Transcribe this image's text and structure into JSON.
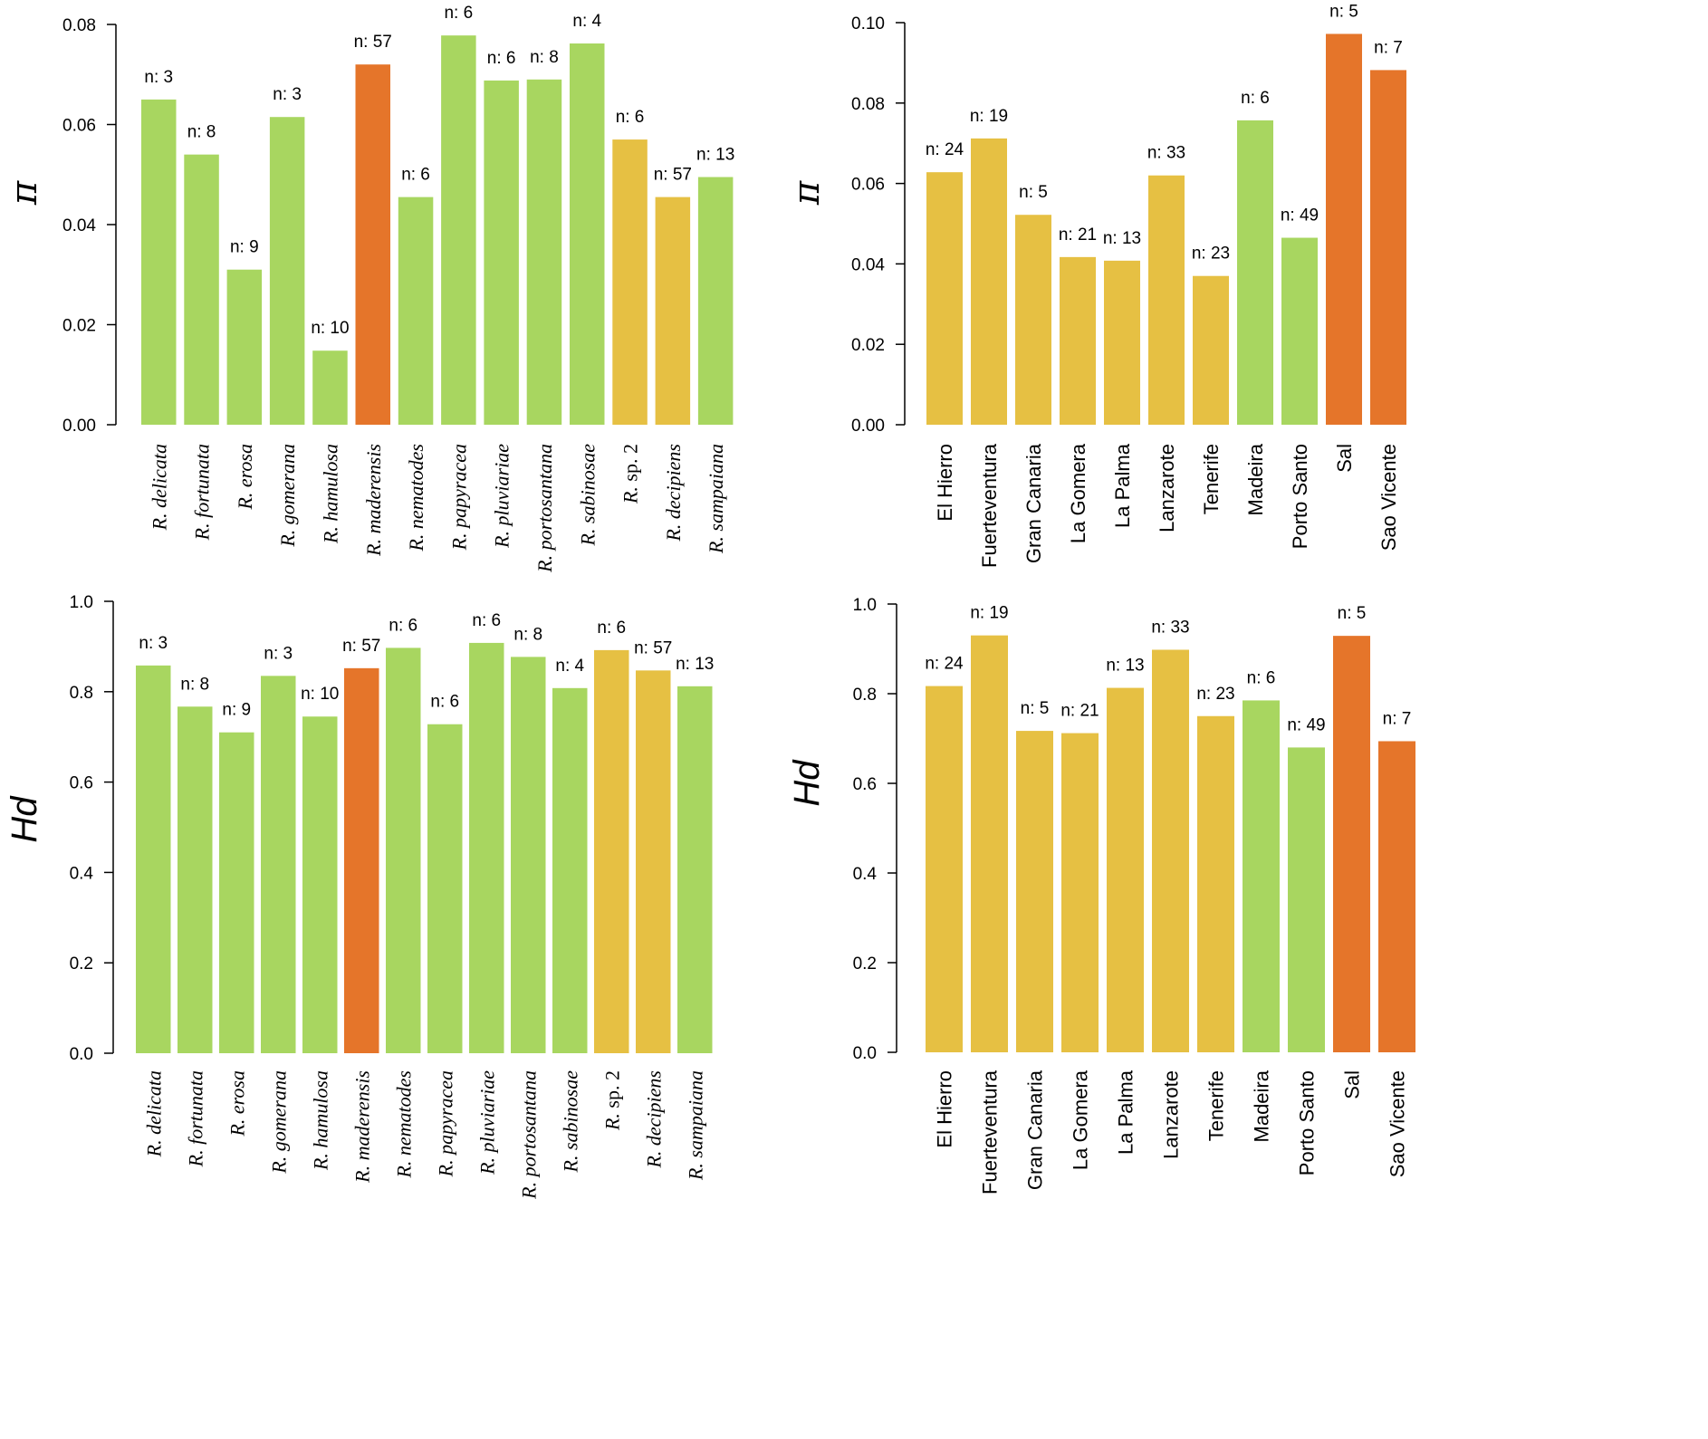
{
  "colors": {
    "green": "#a8d660",
    "yellow": "#e6c043",
    "orange": "#e5752a",
    "axis": "#000000"
  },
  "chart_data": [
    {
      "type": "bar",
      "ylabel": "π",
      "ylim": [
        0,
        0.08
      ],
      "yticks": [
        "0.00",
        "0.02",
        "0.04",
        "0.06",
        "0.08"
      ],
      "label_style": "species",
      "categories": [
        {
          "prefix": "R.",
          "name": "delicata"
        },
        {
          "prefix": "R.",
          "name": "fortunata"
        },
        {
          "prefix": "R.",
          "name": "erosa"
        },
        {
          "prefix": "R.",
          "name": "gomerana"
        },
        {
          "prefix": "R.",
          "name": "hamulosa"
        },
        {
          "prefix": "R.",
          "name": "maderensis"
        },
        {
          "prefix": "R.",
          "name": "nematodes"
        },
        {
          "prefix": "R.",
          "name": "papyracea"
        },
        {
          "prefix": "R.",
          "name": "pluviariae"
        },
        {
          "prefix": "R.",
          "name": "portosantana"
        },
        {
          "prefix": "R.",
          "name": "sabinosae"
        },
        {
          "prefix": "R. sp. 2",
          "name": ""
        },
        {
          "prefix": "R.",
          "name": "decipiens"
        },
        {
          "prefix": "R.",
          "name": "sampaiana"
        }
      ],
      "values": [
        0.065,
        0.054,
        0.031,
        0.0615,
        0.0148,
        0.072,
        0.0455,
        0.0778,
        0.0688,
        0.069,
        0.0762,
        0.057,
        0.0455,
        0.0495
      ],
      "n_labels": [
        "n: 3",
        "n: 8",
        "n: 9",
        "n: 3",
        "n: 10",
        "n: 57",
        "n: 6",
        "n: 6",
        "n: 6",
        "n: 8",
        "n: 4",
        "n: 6",
        "n: 57",
        "n: 13"
      ],
      "bar_colors": [
        "green",
        "green",
        "green",
        "green",
        "green",
        "orange",
        "green",
        "green",
        "green",
        "green",
        "green",
        "yellow",
        "yellow",
        "green"
      ]
    },
    {
      "type": "bar",
      "ylabel": "π",
      "ylim": [
        0,
        0.1
      ],
      "yticks": [
        "0.00",
        "0.02",
        "0.04",
        "0.06",
        "0.08",
        "0.10"
      ],
      "label_style": "island",
      "categories": [
        "El Hierro",
        "Fuerteventura",
        "Gran Canaria",
        "La Gomera",
        "La Palma",
        "Lanzarote",
        "Tenerife",
        "Madeira",
        "Porto Santo",
        "Sal",
        "Sao Vicente"
      ],
      "values": [
        0.0628,
        0.0712,
        0.0522,
        0.0417,
        0.0408,
        0.062,
        0.037,
        0.0757,
        0.0465,
        0.0972,
        0.0882
      ],
      "n_labels": [
        "n: 24",
        "n: 19",
        "n: 5",
        "n: 21",
        "n: 13",
        "n: 33",
        "n: 23",
        "n: 6",
        "n: 49",
        "n: 5",
        "n: 7"
      ],
      "bar_colors": [
        "yellow",
        "yellow",
        "yellow",
        "yellow",
        "yellow",
        "yellow",
        "yellow",
        "green",
        "green",
        "orange",
        "orange"
      ]
    },
    {
      "type": "bar",
      "ylabel": "Hd",
      "ylim": [
        0,
        1.0
      ],
      "yticks": [
        "0.0",
        "0.2",
        "0.4",
        "0.6",
        "0.8",
        "1.0"
      ],
      "label_style": "species",
      "categories": [
        {
          "prefix": "R.",
          "name": "delicata"
        },
        {
          "prefix": "R.",
          "name": "fortunata"
        },
        {
          "prefix": "R.",
          "name": "erosa"
        },
        {
          "prefix": "R.",
          "name": "gomerana"
        },
        {
          "prefix": "R.",
          "name": "hamulosa"
        },
        {
          "prefix": "R.",
          "name": "maderensis"
        },
        {
          "prefix": "R.",
          "name": "nematodes"
        },
        {
          "prefix": "R.",
          "name": "papyracea"
        },
        {
          "prefix": "R.",
          "name": "pluviariae"
        },
        {
          "prefix": "R.",
          "name": "portosantana"
        },
        {
          "prefix": "R.",
          "name": "sabinosae"
        },
        {
          "prefix": "R. sp. 2",
          "name": ""
        },
        {
          "prefix": "R.",
          "name": "decipiens"
        },
        {
          "prefix": "R.",
          "name": "sampaiana"
        }
      ],
      "values": [
        0.858,
        0.767,
        0.71,
        0.835,
        0.745,
        0.852,
        0.897,
        0.728,
        0.908,
        0.877,
        0.808,
        0.892,
        0.847,
        0.812
      ],
      "n_labels": [
        "n: 3",
        "n: 8",
        "n: 9",
        "n: 3",
        "n: 10",
        "n: 57",
        "n: 6",
        "n: 6",
        "n: 6",
        "n: 8",
        "n: 4",
        "n: 6",
        "n: 57",
        "n: 13"
      ],
      "bar_colors": [
        "green",
        "green",
        "green",
        "green",
        "green",
        "orange",
        "green",
        "green",
        "green",
        "green",
        "green",
        "yellow",
        "yellow",
        "green"
      ]
    },
    {
      "type": "bar",
      "ylabel": "Hd",
      "ylim": [
        0,
        1.0
      ],
      "yticks": [
        "0.0",
        "0.2",
        "0.4",
        "0.6",
        "0.8",
        "1.0"
      ],
      "label_style": "island",
      "categories": [
        "El Hierro",
        "Fuerteventura",
        "Gran Canaria",
        "La Gomera",
        "La Palma",
        "Lanzarote",
        "Tenerife",
        "Madeira",
        "Porto Santo",
        "Sal",
        "Sao Vicente"
      ],
      "values": [
        0.817,
        0.93,
        0.717,
        0.712,
        0.813,
        0.898,
        0.75,
        0.785,
        0.68,
        0.929,
        0.694
      ],
      "n_labels": [
        "n: 24",
        "n: 19",
        "n: 5",
        "n: 21",
        "n: 13",
        "n: 33",
        "n: 23",
        "n: 6",
        "n: 49",
        "n: 5",
        "n: 7"
      ],
      "bar_colors": [
        "yellow",
        "yellow",
        "yellow",
        "yellow",
        "yellow",
        "yellow",
        "yellow",
        "green",
        "green",
        "orange",
        "orange"
      ]
    }
  ]
}
